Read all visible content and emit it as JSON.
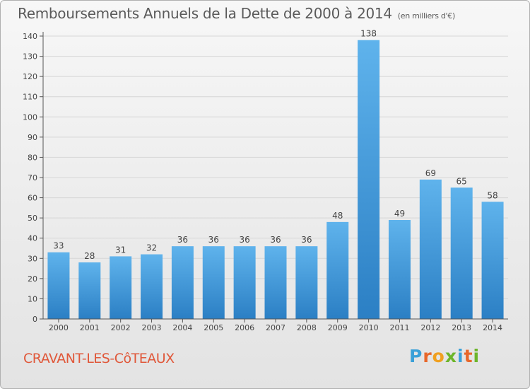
{
  "title": "Remboursements Annuels de la Dette de 2000 à 2014",
  "unit_note": "(en milliers d'€)",
  "commune": "CRAVANT-LES-CôTEAUX",
  "logo": {
    "text": "Proxiti",
    "letter_colors": [
      "#3aa0d8",
      "#e8672a",
      "#f0a020",
      "#6cb52a",
      "#3aa0d8",
      "#e8672a",
      "#6cb52a"
    ]
  },
  "colors": {
    "bar_light": "#5fb3ec",
    "bar_dark": "#2b7fc4",
    "axis": "#555555",
    "grid": "#d6d6d6",
    "commune": "#e0583a"
  },
  "chart_data": {
    "type": "bar",
    "title": "Remboursements Annuels de la Dette de 2000 à 2014",
    "xlabel": "",
    "ylabel": "",
    "categories": [
      "2000",
      "2001",
      "2002",
      "2003",
      "2004",
      "2005",
      "2006",
      "2007",
      "2008",
      "2009",
      "2010",
      "2011",
      "2012",
      "2013",
      "2014"
    ],
    "values": [
      33,
      28,
      31,
      32,
      36,
      36,
      36,
      36,
      36,
      48,
      138,
      49,
      69,
      65,
      58
    ],
    "ylim": [
      0,
      140
    ],
    "yticks": [
      0,
      10,
      20,
      30,
      40,
      50,
      60,
      70,
      80,
      90,
      100,
      110,
      120,
      130,
      140
    ],
    "data_labels": true,
    "grid": true
  }
}
